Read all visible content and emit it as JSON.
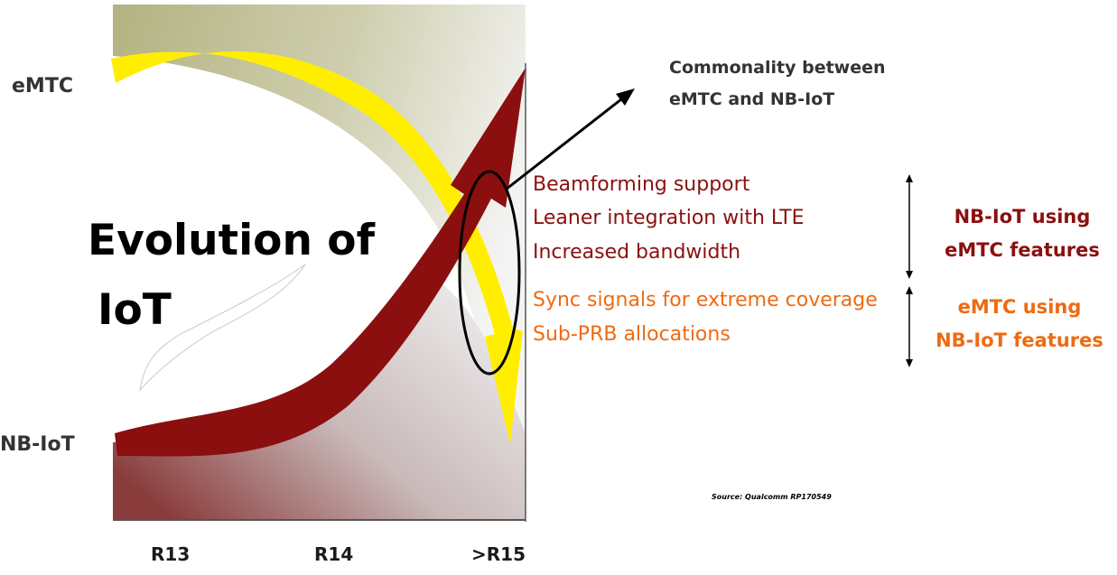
{
  "diagram": {
    "row_labels": {
      "top": "eMTC",
      "bottom": "NB-IoT"
    },
    "title_lines": [
      "Evolution of",
      "IoT"
    ],
    "axis_labels": [
      "R13",
      "R14",
      ">R15"
    ],
    "commonality_lines": [
      "Commonality between",
      "eMTC and NB-IoT"
    ],
    "nbiot_features": [
      "Beamforming support",
      "Leaner integration with LTE",
      "Increased bandwidth"
    ],
    "emtc_features": [
      "Sync signals for extreme coverage",
      "Sub-PRB allocations"
    ],
    "group_nbiot_lines": [
      "NB-IoT using",
      "eMTC features"
    ],
    "group_emtc_lines": [
      "eMTC using",
      "NB-IoT features"
    ],
    "source": "Source: Qualcomm RP170549",
    "colors": {
      "nbiot": "#8b0f0f",
      "emtc": "#ffee00",
      "emtc_text": "#ef6a12",
      "nbiot_text": "#8b1010",
      "backdrop_top": "#b3b281",
      "backdrop_bottom": "#8a3c3c"
    }
  }
}
